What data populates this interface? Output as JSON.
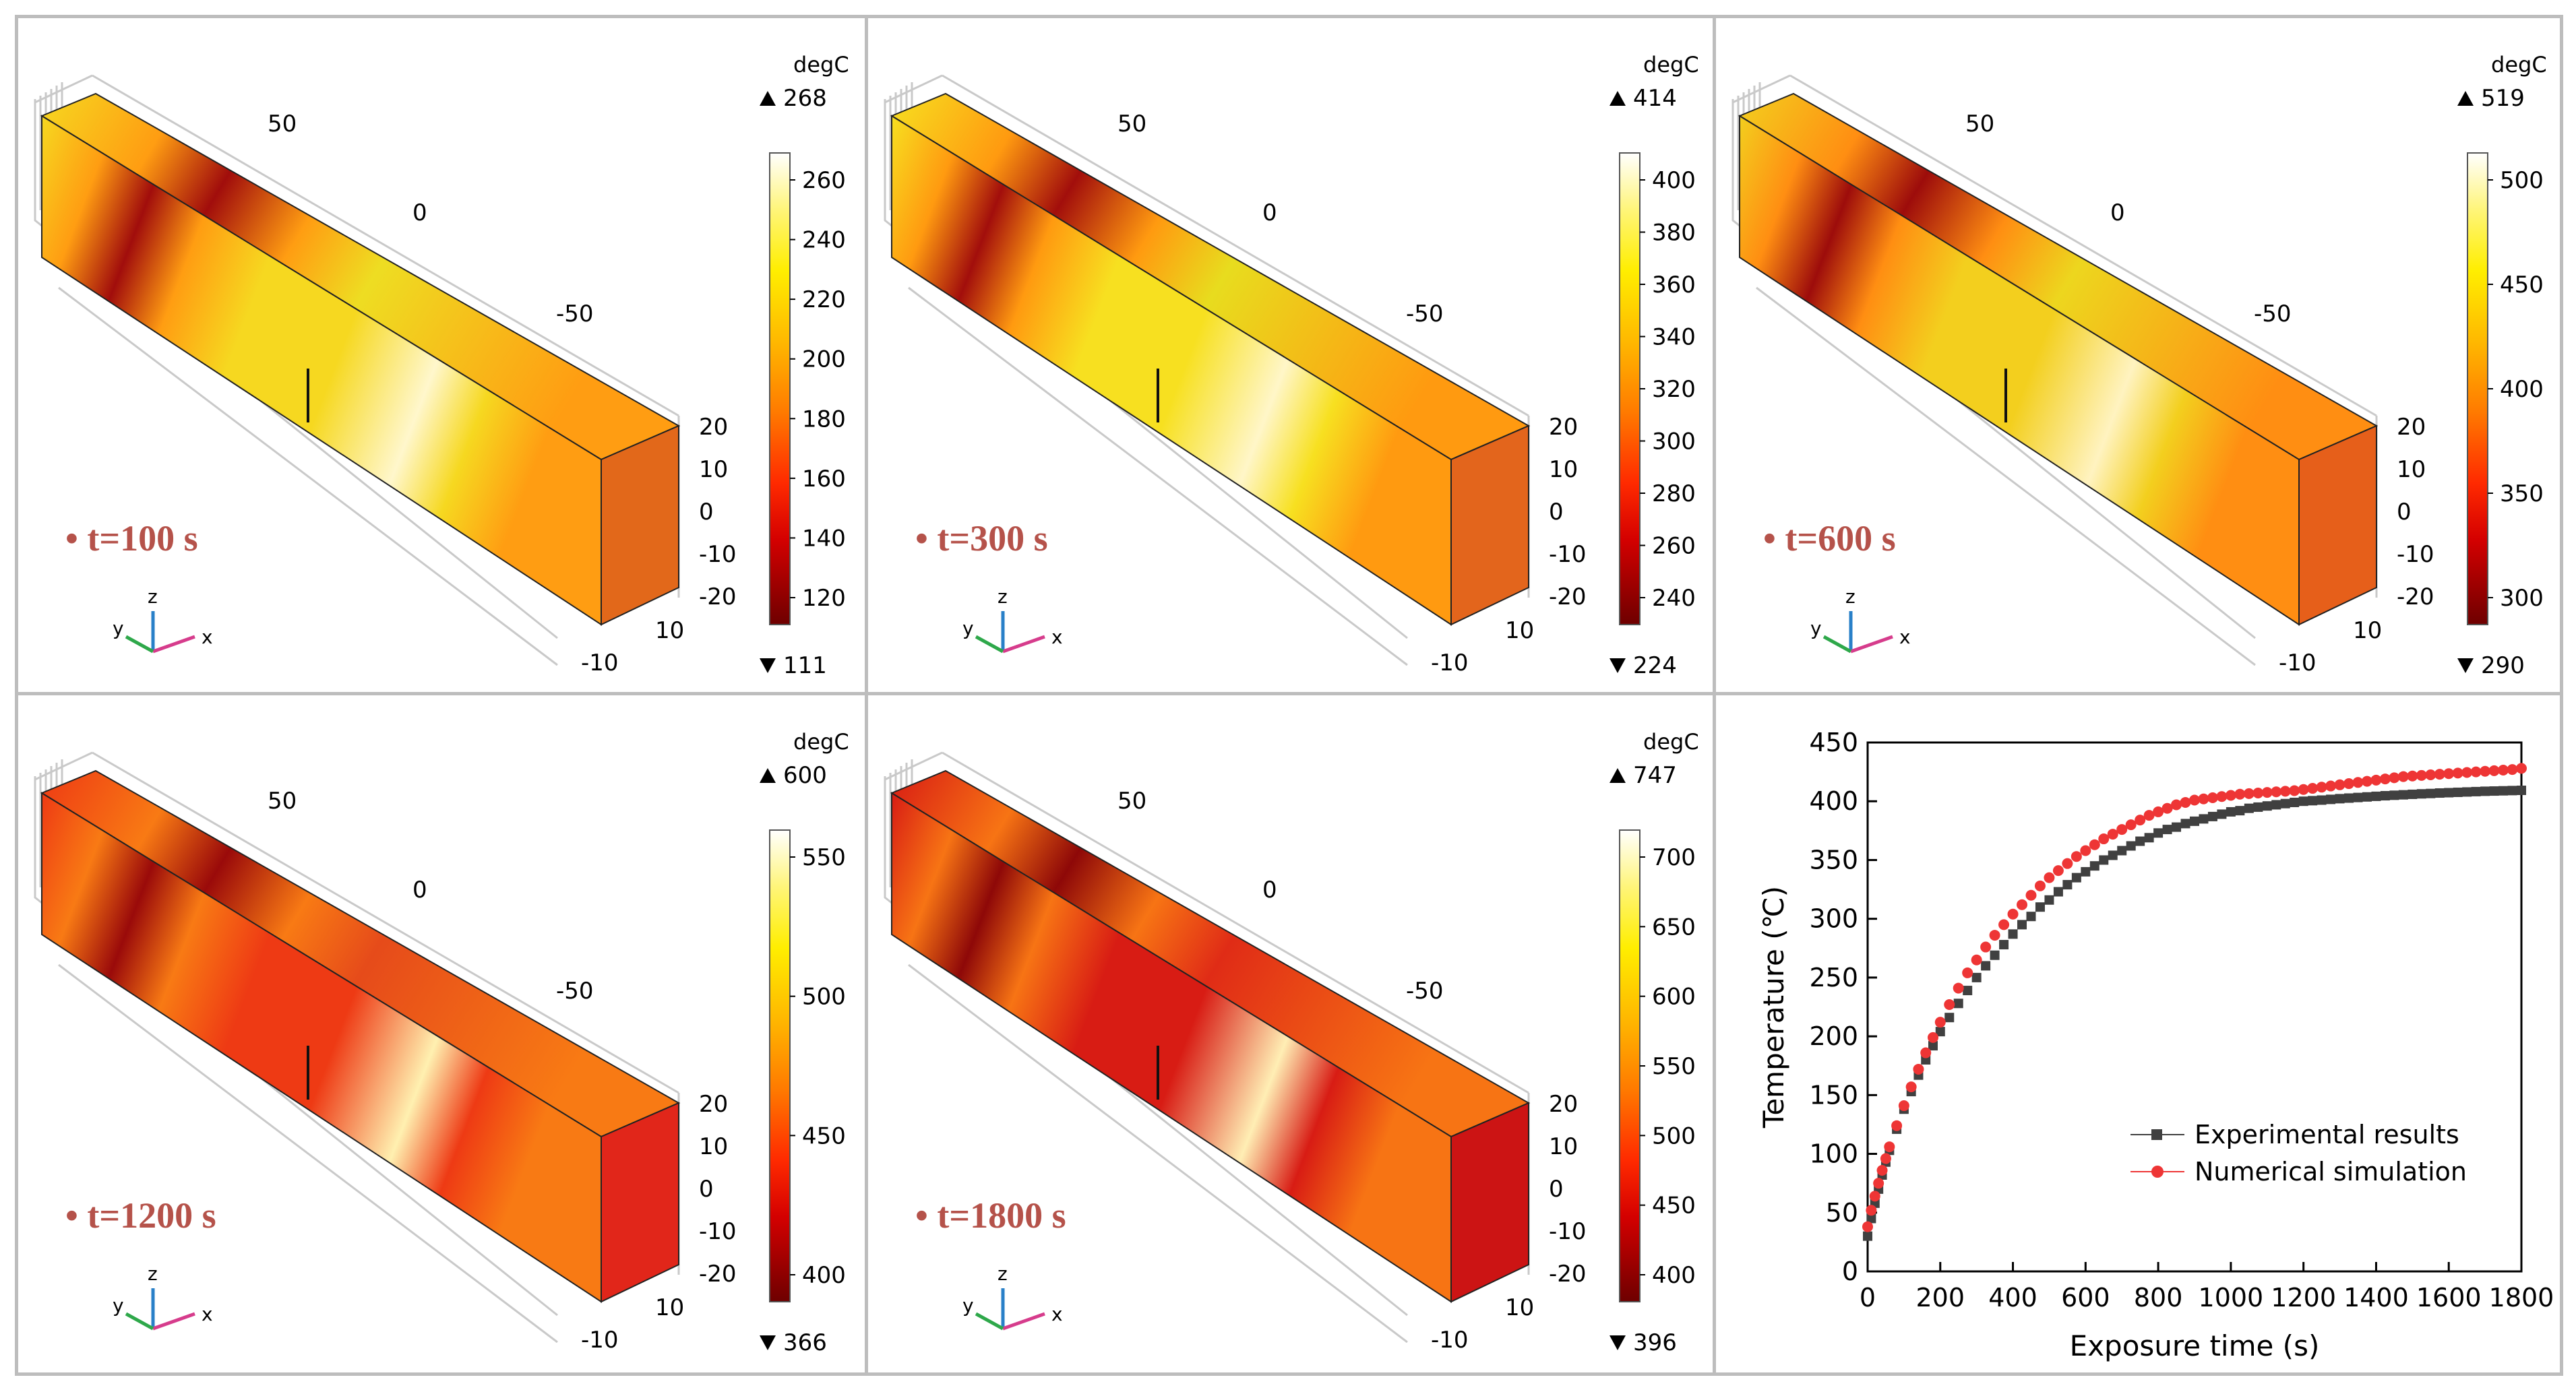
{
  "unit": "degC",
  "panels": [
    {
      "time_label": "t=100 s",
      "max": "268",
      "min": "111",
      "ticks": [
        "260",
        "240",
        "220",
        "200",
        "180",
        "160",
        "140",
        "120"
      ],
      "axis": {
        "top1": "50",
        "top2": "0",
        "top3": "-50",
        "side": [
          "20",
          "10",
          "0",
          "-10",
          "-20"
        ],
        "depth": [
          "10",
          "-10"
        ]
      },
      "c": {
        "top": "#eedd22",
        "front": "#f6d820",
        "end": "#e2681a",
        "hot": "#a10d0c",
        "warm": "#ff9d12",
        "bright": "#fff7cc"
      }
    },
    {
      "time_label": "t=300 s",
      "max": "414",
      "min": "224",
      "ticks": [
        "400",
        "380",
        "360",
        "340",
        "320",
        "300",
        "280",
        "260",
        "240"
      ],
      "axis": {
        "top1": "50",
        "top2": "0",
        "top3": "-50",
        "side": [
          "20",
          "10",
          "0",
          "-10",
          "-20"
        ],
        "depth": [
          "10",
          "-10"
        ]
      },
      "c": {
        "top": "#e8dc1e",
        "front": "#f7e020",
        "end": "#e3651c",
        "hot": "#a20e0c",
        "warm": "#ff9a10",
        "bright": "#fff6c8"
      }
    },
    {
      "time_label": "t=600 s",
      "max": "519",
      "min": "290",
      "ticks": [
        "500",
        "450",
        "400",
        "350",
        "300"
      ],
      "axis": {
        "top1": "50",
        "top2": "0",
        "top3": "-50",
        "side": [
          "20",
          "10",
          "0",
          "-10",
          "-20"
        ],
        "depth": [
          "10",
          "-10"
        ]
      },
      "c": {
        "top": "#edd61e",
        "front": "#f3cf1e",
        "end": "#e65f1a",
        "hot": "#9d0c0b",
        "warm": "#ff8e12",
        "bright": "#fff3c0"
      }
    },
    {
      "time_label": "t=1200 s",
      "max": "600",
      "min": "366",
      "ticks": [
        "550",
        "500",
        "450",
        "400"
      ],
      "axis": {
        "top1": "50",
        "top2": "0",
        "top3": "-50",
        "side": [
          "20",
          "10",
          "0",
          "-10",
          "-20"
        ],
        "depth": [
          "10",
          "-10"
        ]
      },
      "c": {
        "top": "#e64b1a",
        "front": "#ee3a14",
        "end": "#e1261a",
        "hot": "#9a0a0a",
        "warm": "#f87a14",
        "bright": "#fff0b0"
      }
    },
    {
      "time_label": "t=1800 s",
      "max": "747",
      "min": "396",
      "ticks": [
        "700",
        "650",
        "600",
        "550",
        "500",
        "450",
        "400"
      ],
      "axis": {
        "top1": "50",
        "top2": "0",
        "top3": "-50",
        "side": [
          "20",
          "10",
          "0",
          "-10",
          "-20"
        ],
        "depth": [
          "10",
          "-10"
        ]
      },
      "c": {
        "top": "#e02c16",
        "front": "#d81c14",
        "end": "#cc1414",
        "hot": "#8e0808",
        "warm": "#f77414",
        "bright": "#ffeeb4"
      }
    }
  ],
  "chart_data": {
    "type": "scatter",
    "title": "",
    "xlabel": "Exposure time (s)",
    "ylabel": "Temperature (℃)",
    "xlim": [
      0,
      1800
    ],
    "ylim": [
      0,
      450
    ],
    "xticks": [
      "0",
      "200",
      "400",
      "600",
      "800",
      "1000",
      "1200",
      "1400",
      "1600",
      "1800"
    ],
    "yticks": [
      "0",
      "50",
      "100",
      "150",
      "200",
      "250",
      "300",
      "350",
      "400",
      "450"
    ],
    "legend": "bottom-right",
    "series": [
      {
        "name": "Experimental results",
        "color": "#404040",
        "marker": "square",
        "x": [
          0,
          10,
          20,
          30,
          40,
          50,
          60,
          80,
          100,
          120,
          140,
          160,
          180,
          200,
          225,
          250,
          275,
          300,
          325,
          350,
          375,
          400,
          425,
          450,
          475,
          500,
          525,
          550,
          575,
          600,
          625,
          650,
          675,
          700,
          725,
          750,
          775,
          800,
          825,
          850,
          875,
          900,
          925,
          950,
          975,
          1000,
          1025,
          1050,
          1075,
          1100,
          1125,
          1150,
          1175,
          1200,
          1225,
          1250,
          1275,
          1300,
          1325,
          1350,
          1375,
          1400,
          1425,
          1450,
          1475,
          1500,
          1525,
          1550,
          1575,
          1600,
          1625,
          1650,
          1675,
          1700,
          1725,
          1750,
          1775,
          1800
        ],
        "y": [
          30,
          45,
          58,
          70,
          82,
          93,
          103,
          121,
          138,
          153,
          167,
          180,
          192,
          204,
          216,
          228,
          239,
          250,
          260,
          269,
          278,
          287,
          295,
          302,
          310,
          316,
          323,
          329,
          335,
          340,
          345,
          350,
          354,
          358,
          362,
          366,
          369,
          373,
          376,
          378,
          381,
          383,
          385,
          387,
          389,
          391,
          392,
          394,
          395,
          396,
          397,
          398,
          399,
          400,
          400.5,
          401,
          401.6,
          402.2,
          402.7,
          403.2,
          403.7,
          404.2,
          404.7,
          405.1,
          405.5,
          405.9,
          406.3,
          406.6,
          407,
          407.3,
          407.6,
          407.9,
          408.2,
          408.5,
          408.7,
          408.9,
          409.1,
          409.3
        ]
      },
      {
        "name": "Numerical simulation",
        "color": "#ee3535",
        "marker": "circle",
        "x": [
          0,
          10,
          20,
          30,
          40,
          50,
          60,
          80,
          100,
          120,
          140,
          160,
          180,
          200,
          225,
          250,
          275,
          300,
          325,
          350,
          375,
          400,
          425,
          450,
          475,
          500,
          525,
          550,
          575,
          600,
          625,
          650,
          675,
          700,
          725,
          750,
          775,
          800,
          825,
          850,
          875,
          900,
          925,
          950,
          975,
          1000,
          1025,
          1050,
          1075,
          1100,
          1125,
          1150,
          1175,
          1200,
          1225,
          1250,
          1275,
          1300,
          1325,
          1350,
          1375,
          1400,
          1425,
          1450,
          1475,
          1500,
          1525,
          1550,
          1575,
          1600,
          1625,
          1650,
          1675,
          1700,
          1725,
          1750,
          1775,
          1800
        ],
        "y": [
          38,
          52,
          64,
          75,
          86,
          96,
          106,
          124,
          141,
          157,
          172,
          186,
          199,
          212,
          227,
          241,
          254,
          265,
          276,
          286,
          295,
          304,
          312,
          320,
          328,
          335,
          341,
          347,
          353,
          358,
          363,
          368,
          372,
          376,
          380,
          384,
          388,
          391,
          394,
          397,
          399,
          401,
          402,
          403,
          404,
          405,
          406,
          406.5,
          407,
          407.5,
          408,
          408.5,
          409,
          410,
          411,
          412,
          413,
          414,
          415,
          416,
          417,
          418,
          419,
          420,
          421,
          421.5,
          422,
          422.5,
          423,
          423.5,
          424,
          424.5,
          425,
          425.5,
          426,
          426.5,
          427,
          428
        ]
      }
    ]
  }
}
